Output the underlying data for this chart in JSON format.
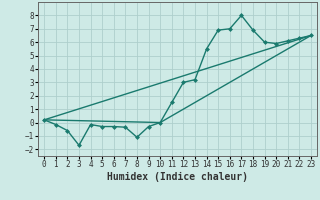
{
  "xlabel": "Humidex (Indice chaleur)",
  "ylabel": "",
  "xlim": [
    -0.5,
    23.5
  ],
  "ylim": [
    -2.5,
    9.0
  ],
  "yticks": [
    -2,
    -1,
    0,
    1,
    2,
    3,
    4,
    5,
    6,
    7,
    8
  ],
  "xticks": [
    0,
    1,
    2,
    3,
    4,
    5,
    6,
    7,
    8,
    9,
    10,
    11,
    12,
    13,
    14,
    15,
    16,
    17,
    18,
    19,
    20,
    21,
    22,
    23
  ],
  "bg_color": "#ceeae6",
  "grid_color": "#aecfcc",
  "line_color": "#1a7a6e",
  "line1_x": [
    0,
    1,
    2,
    3,
    4,
    5,
    6,
    7,
    8,
    9,
    10,
    11,
    12,
    13,
    14,
    15,
    16,
    17,
    18,
    19,
    20,
    21,
    22,
    23
  ],
  "line1_y": [
    0.2,
    -0.15,
    -0.6,
    -1.7,
    -0.15,
    -0.3,
    -0.3,
    -0.35,
    -1.1,
    -0.3,
    0.0,
    1.5,
    3.0,
    3.2,
    5.5,
    6.9,
    7.0,
    8.0,
    6.9,
    6.0,
    5.9,
    6.1,
    6.3,
    6.5
  ],
  "line2_x": [
    0,
    23
  ],
  "line2_y": [
    0.2,
    6.5
  ],
  "line3_x": [
    0,
    10,
    23
  ],
  "line3_y": [
    0.2,
    0.0,
    6.5
  ],
  "tick_fontsize": 5.5,
  "xlabel_fontsize": 7.0,
  "marker_size": 2.5
}
